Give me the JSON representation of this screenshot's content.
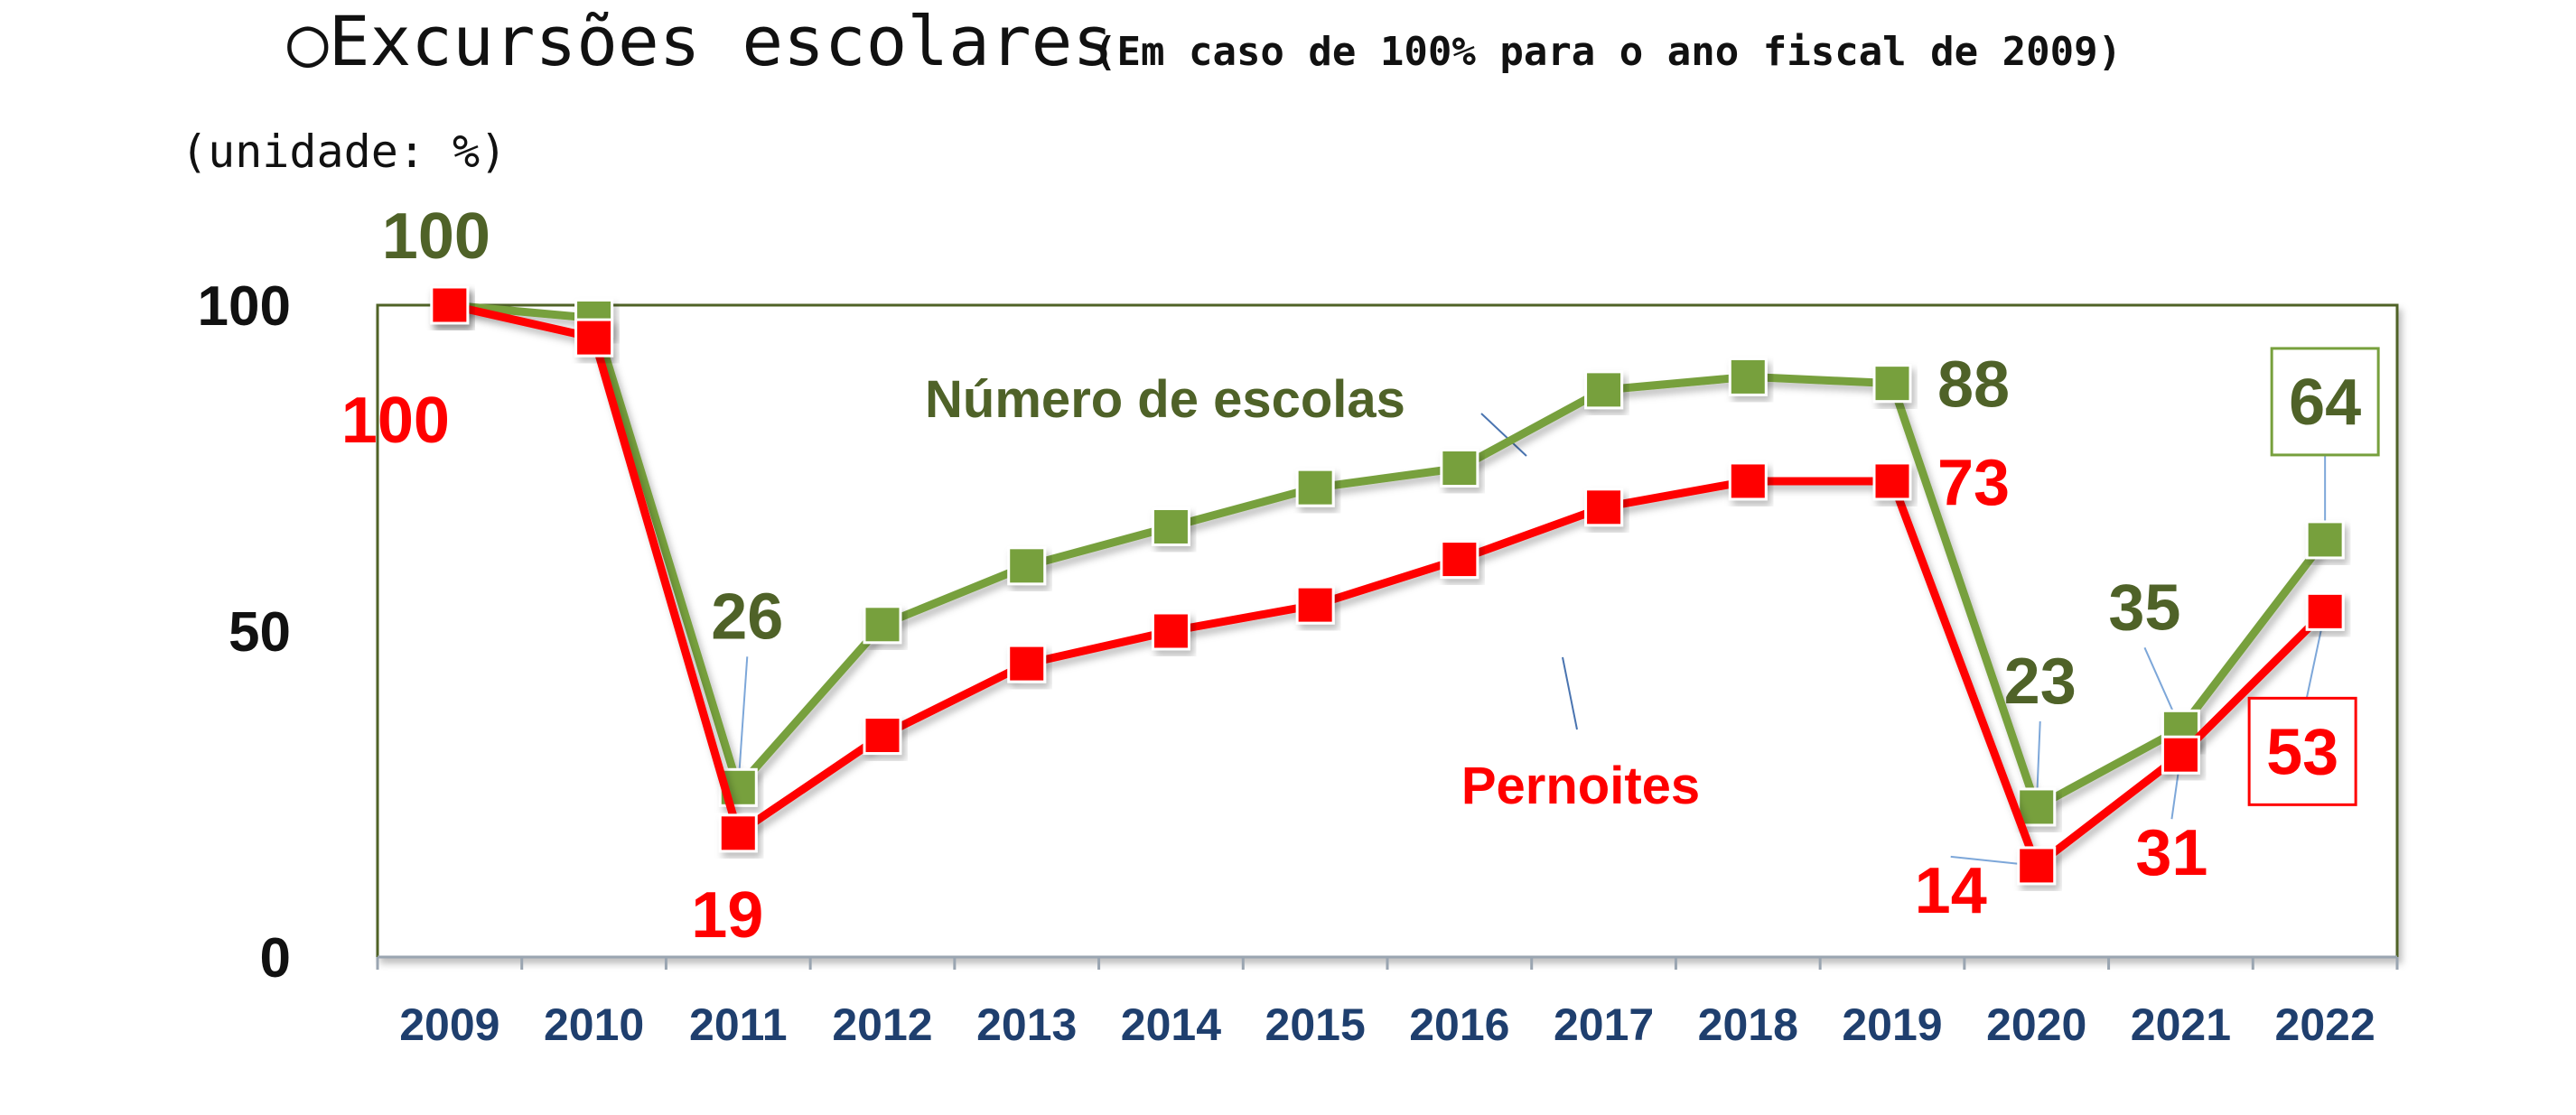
{
  "header": {
    "title": "○Excursões escolares",
    "subtitle": "(Em caso de 100% para o ano fiscal de 2009)",
    "unit": "(unidade: %)"
  },
  "chart_data": {
    "type": "line",
    "title": "○Excursões escolares",
    "subtitle": "(Em caso de 100% para o ano fiscal de 2009)",
    "unit": "(unidade: %)",
    "x": [
      "2009",
      "2010",
      "2011",
      "2012",
      "2013",
      "2014",
      "2015",
      "2016",
      "2017",
      "2018",
      "2019",
      "2020",
      "2021",
      "2022"
    ],
    "ylim": [
      0,
      100
    ],
    "yticks": [
      "0",
      "50",
      "100"
    ],
    "grid": false,
    "series": [
      {
        "name": "Número de escolas",
        "color": "#77a03d",
        "label_color": "#4f6228",
        "values": [
          100,
          98,
          26,
          51,
          60,
          66,
          72,
          75,
          87,
          89,
          88,
          23,
          35,
          64
        ],
        "labels": [
          {
            "index": 0,
            "text": "100"
          },
          {
            "index": 2,
            "text": "26"
          },
          {
            "index": 10,
            "text": "88"
          },
          {
            "index": 11,
            "text": "23"
          },
          {
            "index": 12,
            "text": "35"
          },
          {
            "index": 13,
            "text": "64"
          }
        ]
      },
      {
        "name": "Pernoites",
        "color": "#ff0000",
        "label_color": "#ff0000",
        "values": [
          100,
          95,
          19,
          34,
          45,
          50,
          54,
          61,
          69,
          73,
          73,
          14,
          31,
          53
        ],
        "labels": [
          {
            "index": 0,
            "text": "100"
          },
          {
            "index": 2,
            "text": "19"
          },
          {
            "index": 10,
            "text": "73"
          },
          {
            "index": 11,
            "text": "14"
          },
          {
            "index": 12,
            "text": "31"
          },
          {
            "index": 13,
            "text": "53"
          }
        ]
      }
    ]
  }
}
